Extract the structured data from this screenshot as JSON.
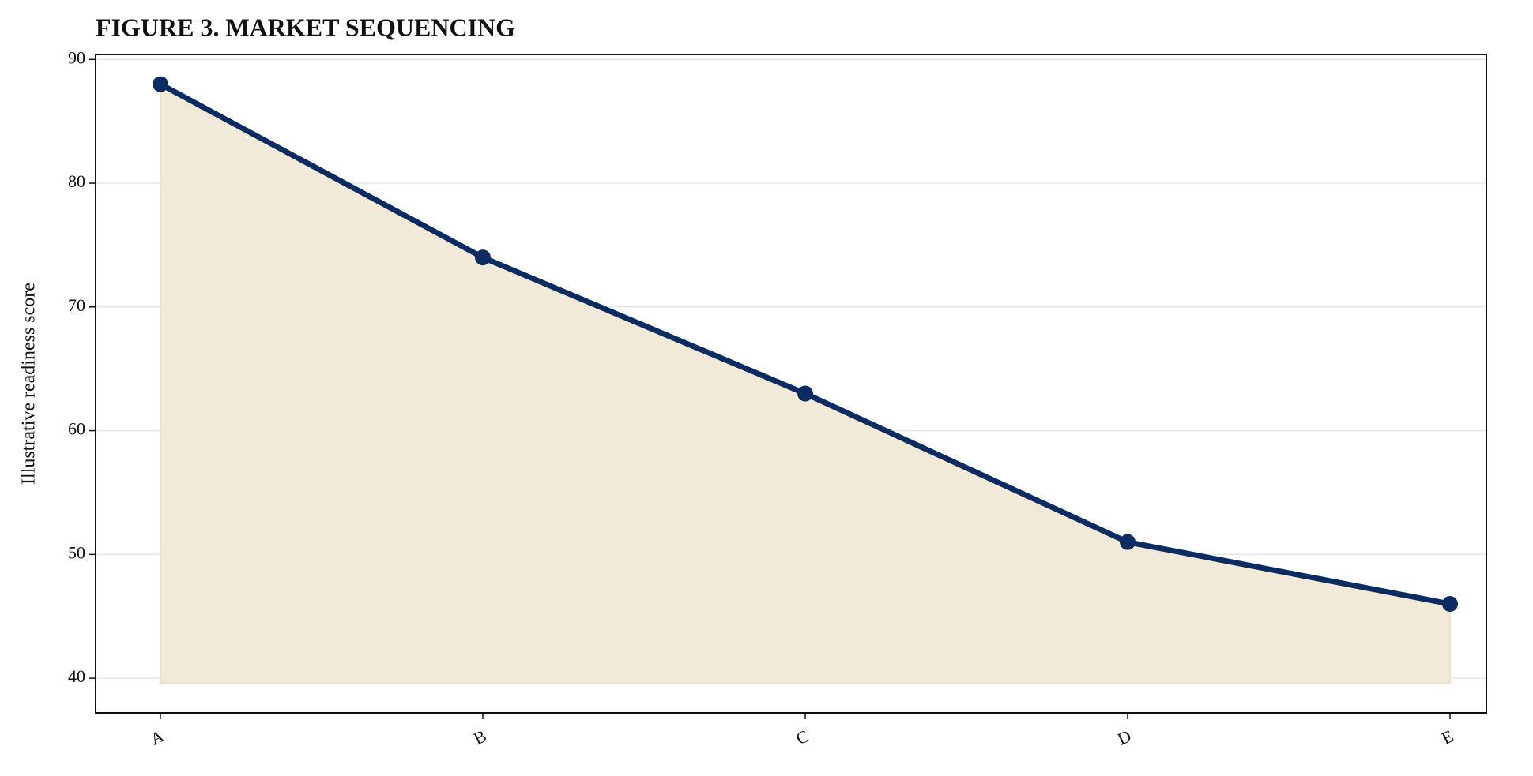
{
  "chart_data": {
    "type": "line",
    "title": "FIGURE 3. MARKET SEQUENCING",
    "y_label": "Illustrative readiness score",
    "categories": [
      "A",
      "B",
      "C",
      "D",
      "E"
    ],
    "values": [
      88,
      74,
      63,
      51,
      46
    ],
    "color": "#0b2b63",
    "fill_color": "#f2ead9",
    "area_baseline": 39.6,
    "ylim": [
      37.2,
      90.4
    ],
    "yticks": [
      40,
      50,
      60,
      70,
      80,
      90
    ],
    "grid": true
  }
}
